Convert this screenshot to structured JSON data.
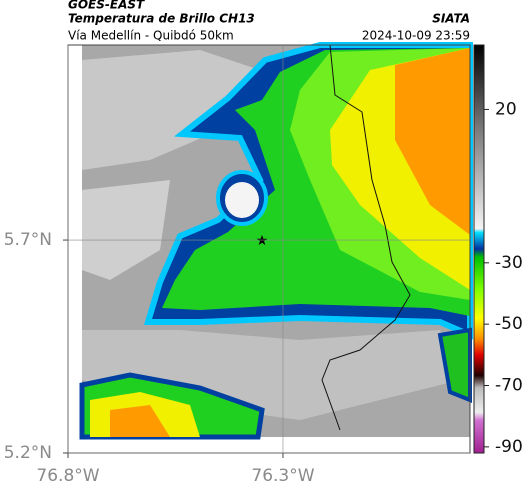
{
  "header": {
    "source": "GOES-EAST",
    "title": "Temperatura de Brillo CH13",
    "org": "SIATA",
    "subtitle": "Vía Medellín - Quibdó 50km",
    "timestamp": "2024-10-09 23:59"
  },
  "map": {
    "xlim": [
      -76.8,
      -75.865
    ],
    "ylim": [
      5.2,
      6.158
    ],
    "xticks": [
      {
        "value": -76.8,
        "label": "76.8°W"
      },
      {
        "value": -76.3,
        "label": "76.3°W"
      }
    ],
    "yticks": [
      {
        "value": 5.7,
        "label": "5.7°N"
      },
      {
        "value": 5.2,
        "label": "5.2°N"
      }
    ],
    "grid": true
  },
  "colorbar": {
    "lim": [
      -92,
      41
    ],
    "ticks": [
      20,
      -30,
      -50,
      -70,
      -90
    ]
  }
}
